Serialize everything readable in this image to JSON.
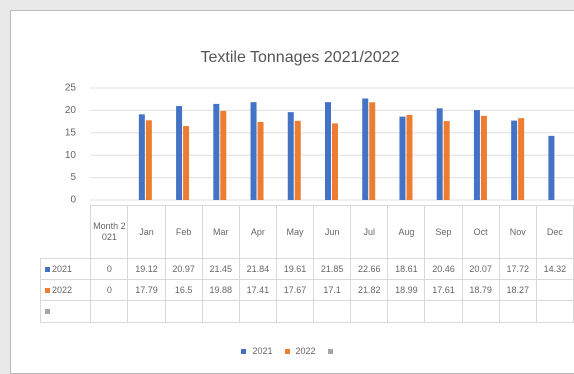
{
  "chart_data": {
    "type": "bar",
    "title": "Textile Tonnages 2021/2022",
    "categories": [
      "Month 2021",
      "Jan",
      "Feb",
      "Mar",
      "Apr",
      "May",
      "Jun",
      "Jul",
      "Aug",
      "Sep",
      "Oct",
      "Nov",
      "Dec"
    ],
    "series": [
      {
        "name": "2021",
        "color": "#4472c4",
        "values": [
          0,
          19.12,
          20.97,
          21.45,
          21.84,
          19.61,
          21.85,
          22.66,
          18.61,
          20.46,
          20.07,
          17.72,
          14.32
        ]
      },
      {
        "name": "2022",
        "color": "#ed7d31",
        "values": [
          0,
          17.79,
          16.5,
          19.88,
          17.41,
          17.67,
          17.1,
          21.82,
          18.99,
          17.61,
          18.79,
          18.27,
          null
        ]
      }
    ],
    "ylim": [
      0,
      25
    ],
    "yticks": [
      0,
      5,
      10,
      15,
      20,
      25
    ],
    "grid": true,
    "legend": "bottom"
  }
}
